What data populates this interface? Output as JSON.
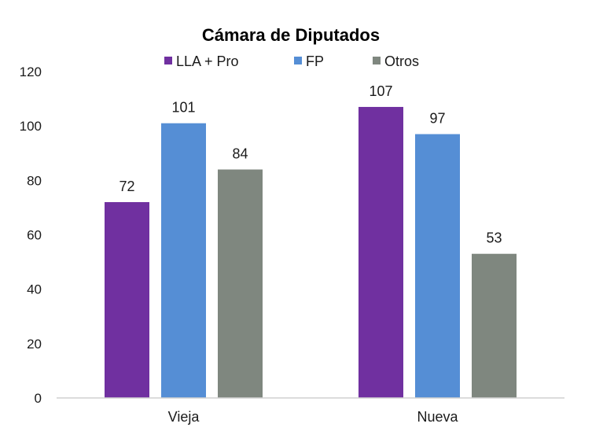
{
  "chart_data": {
    "type": "bar",
    "title": "Cámara de Diputados",
    "categories": [
      "Vieja",
      "Nueva"
    ],
    "series": [
      {
        "name": "LLA + Pro",
        "color": "#7030a0",
        "values": [
          72,
          107
        ]
      },
      {
        "name": "FP",
        "color": "#558ed5",
        "values": [
          101,
          97
        ]
      },
      {
        "name": "Otros",
        "color": "#7f877f",
        "values": [
          84,
          53
        ]
      }
    ],
    "ylim": [
      0,
      120
    ],
    "yticks": [
      0,
      20,
      40,
      60,
      80,
      100,
      120
    ],
    "grid": false,
    "legend": "top",
    "data_labels": true
  }
}
